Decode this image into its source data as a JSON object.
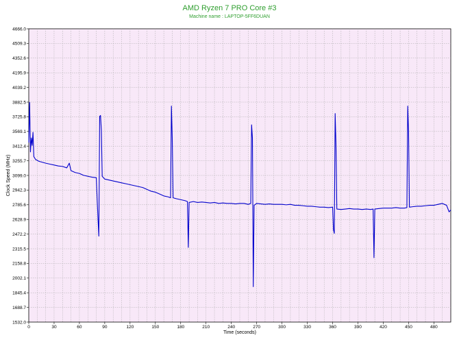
{
  "chart_data": {
    "type": "line",
    "title": "AMD Ryzen 7 PRO Core #3",
    "subtitle": "Machine name : LAPTOP-5FF6DUAN",
    "xlabel": "Time (seconds)",
    "ylabel": "Clock Speed (MHz)",
    "xlim": [
      0,
      500
    ],
    "ylim": [
      1532.0,
      4666.0
    ],
    "x_ticks": [
      0,
      30,
      60,
      90,
      120,
      150,
      180,
      210,
      240,
      270,
      300,
      330,
      360,
      390,
      420,
      450,
      480
    ],
    "y_ticks": [
      1532.0,
      1688.7,
      1845.4,
      2002.1,
      2158.8,
      2315.5,
      2472.2,
      2628.9,
      2785.6,
      2942.3,
      3099.0,
      3255.7,
      3412.4,
      3569.1,
      3725.8,
      3882.5,
      4039.2,
      4195.9,
      4352.6,
      4509.3,
      4666.0
    ],
    "grid": true,
    "series": [
      {
        "color": "#0000cc",
        "points": [
          [
            0,
            3450
          ],
          [
            1,
            3880
          ],
          [
            2,
            3350
          ],
          [
            3,
            3500
          ],
          [
            4,
            3420
          ],
          [
            5,
            3560
          ],
          [
            6,
            3300
          ],
          [
            8,
            3270
          ],
          [
            12,
            3250
          ],
          [
            16,
            3240
          ],
          [
            20,
            3230
          ],
          [
            25,
            3220
          ],
          [
            30,
            3210
          ],
          [
            35,
            3200
          ],
          [
            40,
            3195
          ],
          [
            45,
            3180
          ],
          [
            48,
            3230
          ],
          [
            50,
            3150
          ],
          [
            55,
            3130
          ],
          [
            60,
            3120
          ],
          [
            65,
            3100
          ],
          [
            70,
            3090
          ],
          [
            75,
            3080
          ],
          [
            80,
            3075
          ],
          [
            82,
            2640
          ],
          [
            83,
            2450
          ],
          [
            84,
            3730
          ],
          [
            85,
            3740
          ],
          [
            86,
            3580
          ],
          [
            87,
            3090
          ],
          [
            90,
            3060
          ],
          [
            95,
            3050
          ],
          [
            100,
            3040
          ],
          [
            105,
            3030
          ],
          [
            110,
            3020
          ],
          [
            115,
            3010
          ],
          [
            120,
            3000
          ],
          [
            125,
            2990
          ],
          [
            130,
            2980
          ],
          [
            135,
            2970
          ],
          [
            140,
            2950
          ],
          [
            145,
            2930
          ],
          [
            150,
            2920
          ],
          [
            155,
            2900
          ],
          [
            160,
            2880
          ],
          [
            165,
            2870
          ],
          [
            168,
            2860
          ],
          [
            169,
            3840
          ],
          [
            170,
            3500
          ],
          [
            171,
            2860
          ],
          [
            175,
            2850
          ],
          [
            180,
            2840
          ],
          [
            185,
            2830
          ],
          [
            188,
            2820
          ],
          [
            189,
            2330
          ],
          [
            190,
            2810
          ],
          [
            195,
            2820
          ],
          [
            200,
            2810
          ],
          [
            205,
            2815
          ],
          [
            210,
            2810
          ],
          [
            215,
            2805
          ],
          [
            220,
            2810
          ],
          [
            225,
            2800
          ],
          [
            230,
            2805
          ],
          [
            235,
            2800
          ],
          [
            240,
            2800
          ],
          [
            245,
            2795
          ],
          [
            250,
            2800
          ],
          [
            255,
            2800
          ],
          [
            260,
            2790
          ],
          [
            263,
            2800
          ],
          [
            264,
            3640
          ],
          [
            265,
            3500
          ],
          [
            266,
            1910
          ],
          [
            267,
            2780
          ],
          [
            270,
            2800
          ],
          [
            275,
            2795
          ],
          [
            280,
            2790
          ],
          [
            285,
            2795
          ],
          [
            290,
            2790
          ],
          [
            295,
            2790
          ],
          [
            300,
            2790
          ],
          [
            305,
            2785
          ],
          [
            310,
            2790
          ],
          [
            315,
            2780
          ],
          [
            320,
            2780
          ],
          [
            325,
            2775
          ],
          [
            330,
            2770
          ],
          [
            335,
            2770
          ],
          [
            340,
            2765
          ],
          [
            345,
            2760
          ],
          [
            350,
            2760
          ],
          [
            355,
            2755
          ],
          [
            360,
            2760
          ],
          [
            361,
            2520
          ],
          [
            362,
            2480
          ],
          [
            363,
            3760
          ],
          [
            364,
            3420
          ],
          [
            365,
            2740
          ],
          [
            370,
            2735
          ],
          [
            375,
            2740
          ],
          [
            380,
            2745
          ],
          [
            385,
            2740
          ],
          [
            390,
            2740
          ],
          [
            395,
            2735
          ],
          [
            400,
            2740
          ],
          [
            405,
            2735
          ],
          [
            408,
            2740
          ],
          [
            409,
            2220
          ],
          [
            410,
            2740
          ],
          [
            415,
            2745
          ],
          [
            420,
            2750
          ],
          [
            425,
            2750
          ],
          [
            430,
            2750
          ],
          [
            435,
            2755
          ],
          [
            440,
            2750
          ],
          [
            445,
            2750
          ],
          [
            448,
            2755
          ],
          [
            449,
            3840
          ],
          [
            450,
            3560
          ],
          [
            451,
            2760
          ],
          [
            455,
            2765
          ],
          [
            460,
            2770
          ],
          [
            465,
            2770
          ],
          [
            470,
            2775
          ],
          [
            475,
            2780
          ],
          [
            480,
            2780
          ],
          [
            485,
            2790
          ],
          [
            490,
            2800
          ],
          [
            495,
            2780
          ],
          [
            498,
            2710
          ],
          [
            500,
            2730
          ]
        ]
      }
    ]
  }
}
